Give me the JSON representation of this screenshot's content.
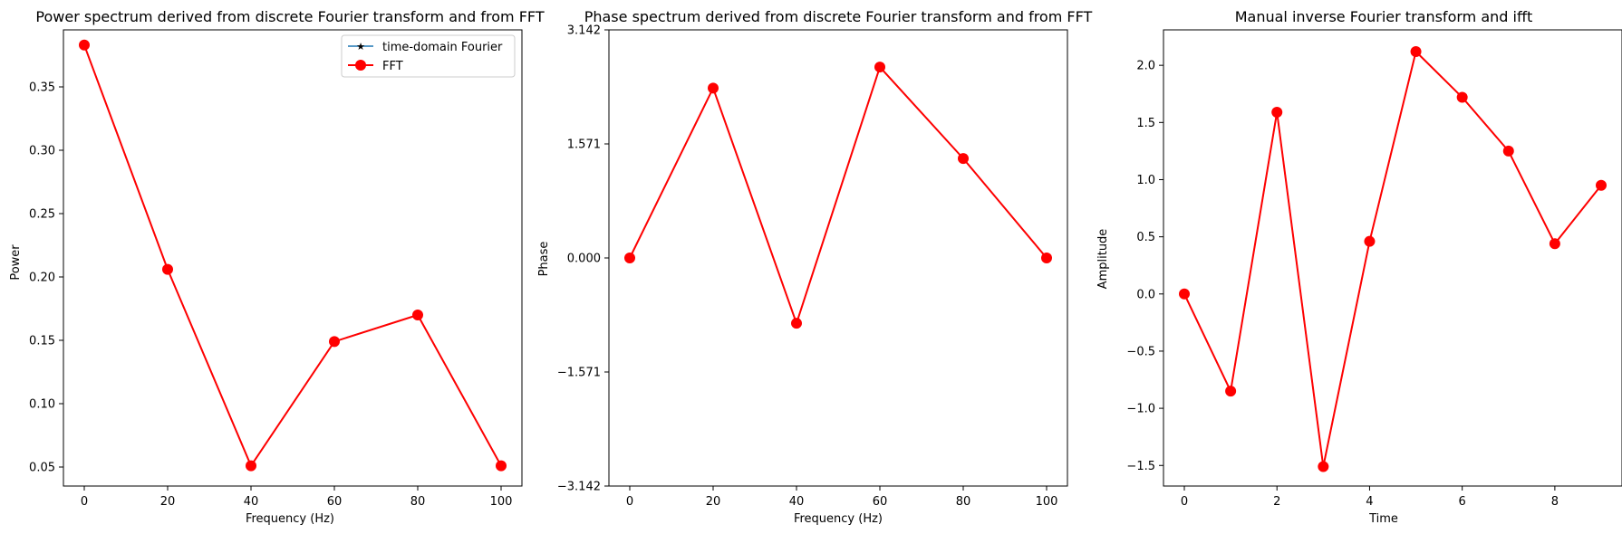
{
  "chart_data": [
    {
      "type": "line",
      "title": "Power spectrum derived from discrete Fourier transform and from FFT",
      "xlabel": "Frequency (Hz)",
      "ylabel": "Power",
      "xlim": [
        -5,
        105
      ],
      "ylim": [
        0.035,
        0.395
      ],
      "xticks": [
        0,
        20,
        40,
        60,
        80,
        100
      ],
      "xtick_labels": [
        "0",
        "20",
        "40",
        "60",
        "80",
        "100"
      ],
      "yticks": [
        0.05,
        0.1,
        0.15,
        0.2,
        0.25,
        0.3,
        0.35
      ],
      "ytick_labels": [
        "0.05",
        "0.10",
        "0.15",
        "0.20",
        "0.25",
        "0.30",
        "0.35"
      ],
      "legend_position": "top-right",
      "series": [
        {
          "name": "time-domain Fourier",
          "color": "#1f77b4",
          "marker": "star",
          "x": [
            0,
            20,
            40,
            60,
            80,
            100
          ],
          "y": [
            0.383,
            0.206,
            0.051,
            0.149,
            0.17,
            0.051
          ]
        },
        {
          "name": "FFT",
          "color": "#ff0000",
          "marker": "circle",
          "x": [
            0,
            20,
            40,
            60,
            80,
            100
          ],
          "y": [
            0.383,
            0.206,
            0.051,
            0.149,
            0.17,
            0.051
          ]
        }
      ]
    },
    {
      "type": "line",
      "title": "Phase spectrum derived from discrete Fourier transform and from FFT",
      "xlabel": "Frequency (Hz)",
      "ylabel": "Phase",
      "xlim": [
        -5,
        105
      ],
      "ylim": [
        -3.142,
        3.142
      ],
      "xticks": [
        0,
        20,
        40,
        60,
        80,
        100
      ],
      "xtick_labels": [
        "0",
        "20",
        "40",
        "60",
        "80",
        "100"
      ],
      "yticks": [
        -3.142,
        -1.571,
        0,
        1.571,
        3.142
      ],
      "ytick_labels": [
        "−3.142",
        "−1.571",
        "0.000",
        "1.571",
        "3.142"
      ],
      "series": [
        {
          "name": "",
          "color": "#1f77b4",
          "marker": "star",
          "x": [
            0,
            20,
            40,
            60,
            80,
            100
          ],
          "y": [
            0.0,
            2.34,
            -0.9,
            2.63,
            1.37,
            0.0
          ]
        },
        {
          "name": "",
          "color": "#ff0000",
          "marker": "circle",
          "x": [
            0,
            20,
            40,
            60,
            80,
            100
          ],
          "y": [
            0.0,
            2.34,
            -0.9,
            2.63,
            1.37,
            0.0
          ]
        }
      ]
    },
    {
      "type": "line",
      "title": "Manual inverse Fourier transform and ifft",
      "xlabel": "Time",
      "ylabel": "Amplitude",
      "xlim": [
        -0.45,
        9.45
      ],
      "ylim": [
        -1.68,
        2.31
      ],
      "xticks": [
        0,
        2,
        4,
        6,
        8
      ],
      "xtick_labels": [
        "0",
        "2",
        "4",
        "6",
        "8"
      ],
      "yticks": [
        -1.5,
        -1.0,
        -0.5,
        0.0,
        0.5,
        1.0,
        1.5,
        2.0
      ],
      "ytick_labels": [
        "−1.5",
        "−1.0",
        "−0.5",
        "0.0",
        "0.5",
        "1.0",
        "1.5",
        "2.0"
      ],
      "series": [
        {
          "name": "",
          "color": "#1f77b4",
          "marker": "star",
          "x": [
            0,
            1,
            2,
            3,
            4,
            5,
            6,
            7,
            8,
            9
          ],
          "y": [
            0.0,
            -0.85,
            1.59,
            -1.51,
            0.46,
            2.12,
            1.72,
            1.25,
            0.44,
            0.95
          ]
        },
        {
          "name": "",
          "color": "#ff0000",
          "marker": "circle",
          "x": [
            0,
            1,
            2,
            3,
            4,
            5,
            6,
            7,
            8,
            9
          ],
          "y": [
            0.0,
            -0.85,
            1.59,
            -1.51,
            0.46,
            2.12,
            1.72,
            1.25,
            0.44,
            0.95
          ]
        }
      ]
    }
  ]
}
